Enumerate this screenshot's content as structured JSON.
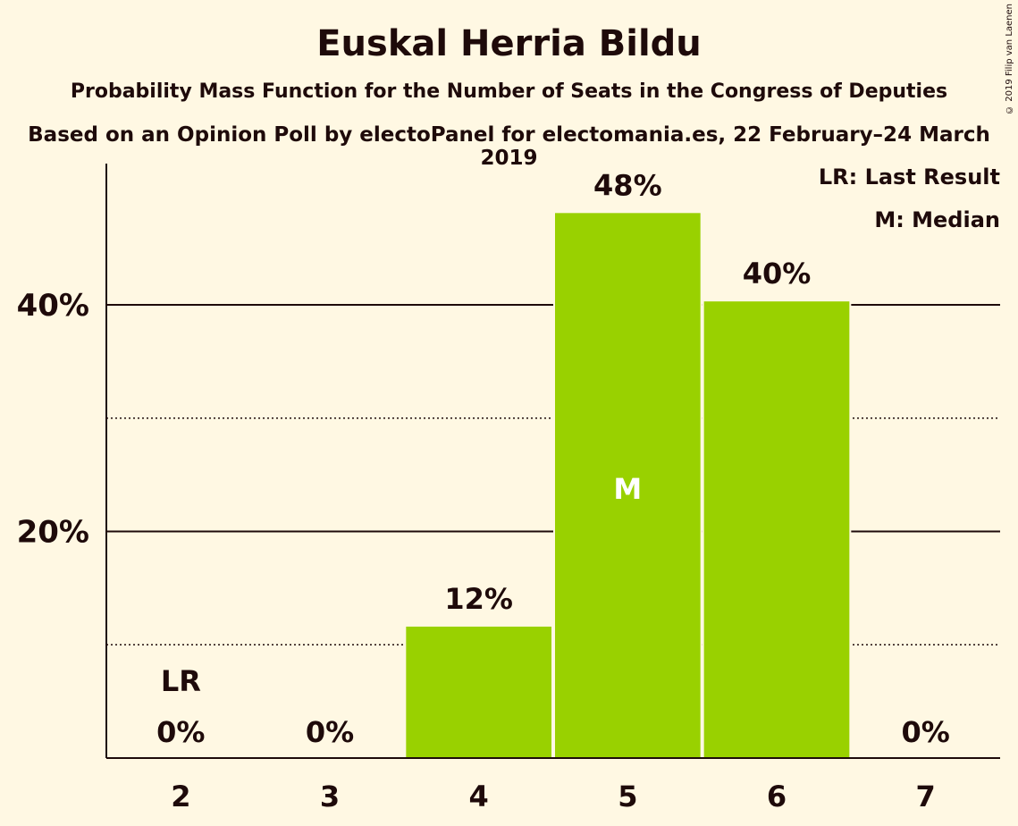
{
  "header": {
    "title": "Euskal Herria Bildu",
    "subtitle": "Probability Mass Function for the Number of Seats in the Congress of Deputies",
    "source": "Based on an Opinion Poll by electoPanel for electomania.es, 22 February–24 March 2019",
    "copyright": "© 2019 Filip van Laenen"
  },
  "legend": {
    "last_result": "LR: Last Result",
    "median": "M: Median"
  },
  "colors": {
    "bar": "#99d100",
    "background": "#fff8e3",
    "text": "#1e0a0a"
  },
  "chart_data": {
    "type": "bar",
    "title": "Euskal Herria Bildu",
    "categories": [
      "2",
      "3",
      "4",
      "5",
      "6",
      "7"
    ],
    "values": [
      0,
      0,
      11.6,
      48.1,
      40.3,
      0
    ],
    "value_labels": [
      "0%",
      "0%",
      "12%",
      "48%",
      "40%",
      "0%"
    ],
    "ylim": [
      0,
      52
    ],
    "major_ticks": [
      20,
      40
    ],
    "major_tick_labels": [
      "20%",
      "40%"
    ],
    "minor_gridlines": [
      10,
      30
    ],
    "last_result_category": "2",
    "last_result_label": "LR",
    "median_category": "5",
    "median_label": "M",
    "grid": true,
    "legend_position": "top-right"
  }
}
